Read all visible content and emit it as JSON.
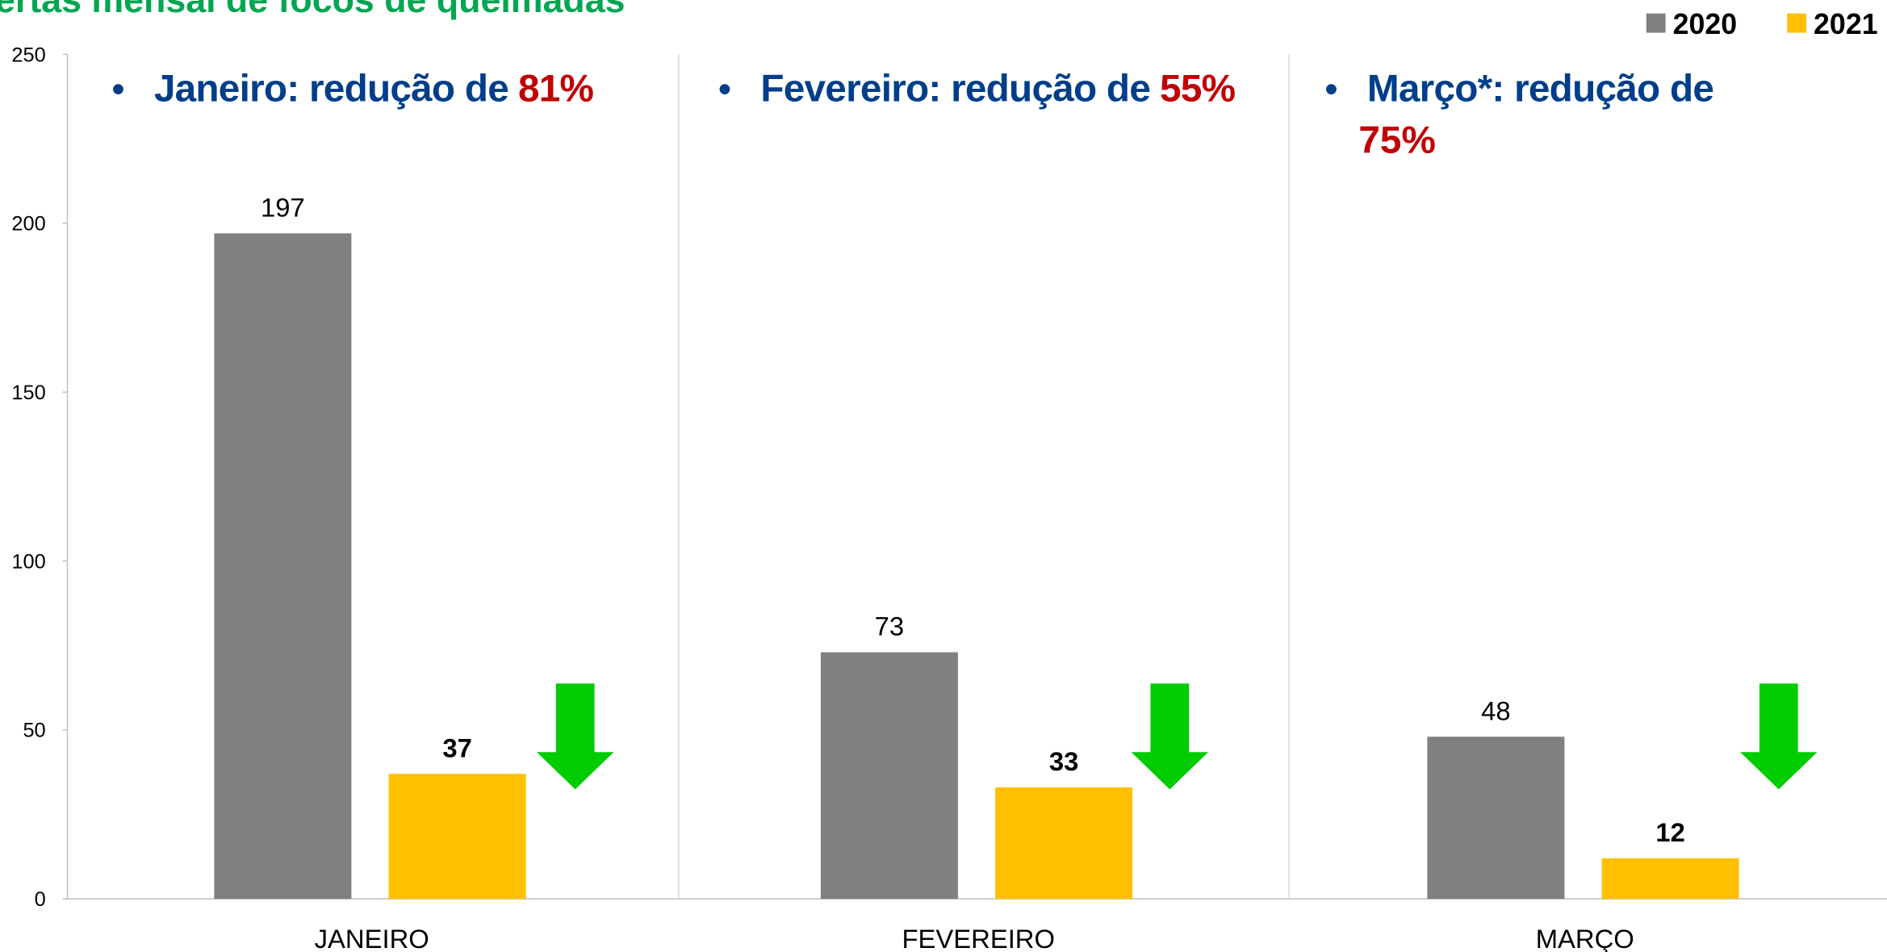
{
  "chart_data": {
    "type": "bar",
    "title": "ertas mensal de focos de queimadas",
    "categories": [
      "JANEIRO",
      "FEVEREIRO",
      "MARÇO"
    ],
    "series": [
      {
        "name": "2020",
        "color": "#808080",
        "values": [
          197,
          73,
          48
        ]
      },
      {
        "name": "2021",
        "color": "#ffc000",
        "values": [
          37,
          33,
          12
        ]
      }
    ],
    "ylim": [
      0,
      250
    ],
    "yticks": [
      0,
      50,
      100,
      150,
      200,
      250
    ],
    "legend": "top-right",
    "annotations": [
      {
        "text": "Janeiro: redução de",
        "value": "81%"
      },
      {
        "text": "Fevereiro: redução de",
        "value": "55%"
      },
      {
        "text": "Março*: redução de",
        "value": "75%"
      }
    ]
  }
}
